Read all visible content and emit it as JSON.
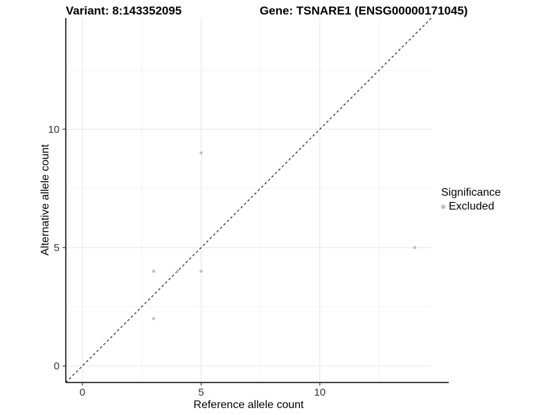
{
  "chart_data": {
    "type": "scatter",
    "title_left": "Variant: 8:143352095",
    "title_right": "Gene: TSNARE1 (ENSG00000171045)",
    "xlabel": "Reference allele count",
    "ylabel": "Alternative allele count",
    "xlim": [
      -0.7,
      14.7
    ],
    "ylim": [
      -0.7,
      14.7
    ],
    "x_ticks": [
      0,
      5,
      10
    ],
    "y_ticks": [
      0,
      5,
      10
    ],
    "grid": "major-and-minor",
    "identity_line": {
      "type": "abline",
      "slope": 1,
      "intercept": 0,
      "style": "dashed",
      "color": "#1a1a1a"
    },
    "series": [
      {
        "name": "Excluded",
        "color": "#bdbdbd",
        "points": [
          [
            3,
            2
          ],
          [
            3,
            4
          ],
          [
            4,
            4
          ],
          [
            5,
            4
          ],
          [
            5,
            9
          ],
          [
            14,
            5
          ]
        ]
      }
    ],
    "legend": {
      "title": "Significance",
      "position": "right",
      "entries": [
        {
          "label": "Excluded",
          "color": "#bdbdbd"
        }
      ]
    }
  },
  "colors": {
    "grid_major": "#e4e4e4",
    "grid_minor": "#f2f2f2",
    "axis_line": "#000000",
    "tick_mark": "#333333",
    "tick_label": "#333333",
    "point_fill": "#bdbdbd"
  }
}
